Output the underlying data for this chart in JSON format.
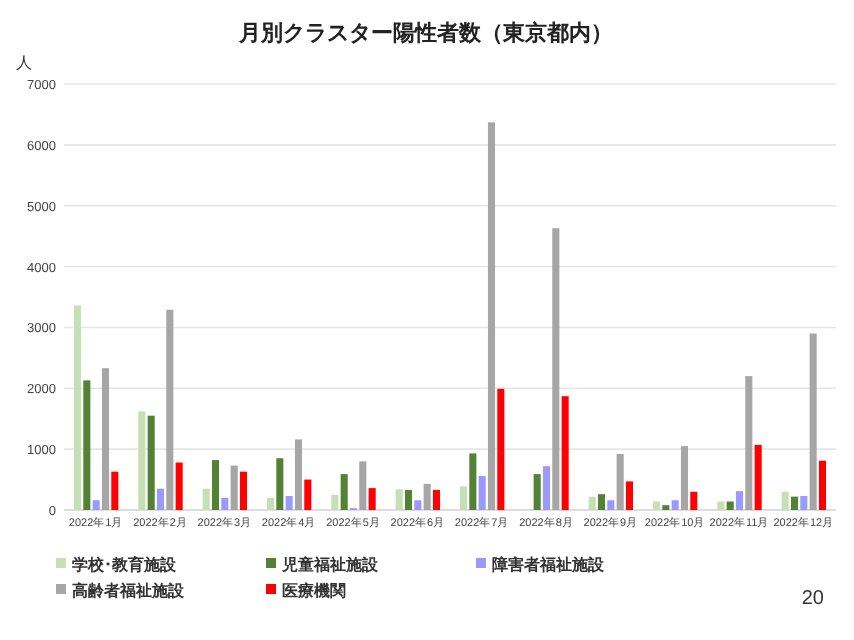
{
  "chart_data": {
    "type": "bar",
    "title": "月別クラスター陽性者数（東京都内）",
    "ylabel": "人",
    "categories": [
      "2022年1月",
      "2022年2月",
      "2022年3月",
      "2022年4月",
      "2022年5月",
      "2022年6月",
      "2022年7月",
      "2022年8月",
      "2022年9月",
      "2022年10月",
      "2022年11月",
      "2022年12月"
    ],
    "series": [
      {
        "name": "学校･教育施設",
        "color": "#c5e0b4",
        "values": [
          3360,
          1620,
          350,
          200,
          250,
          340,
          390,
          0,
          220,
          140,
          140,
          300
        ]
      },
      {
        "name": "児童福祉施設",
        "color": "#548235",
        "values": [
          2130,
          1550,
          820,
          850,
          590,
          330,
          930,
          590,
          260,
          80,
          140,
          220
        ]
      },
      {
        "name": "障害者福祉施設",
        "color": "#9999ff",
        "values": [
          160,
          350,
          200,
          230,
          30,
          160,
          560,
          720,
          160,
          160,
          310,
          230
        ]
      },
      {
        "name": "高齢者福祉施設",
        "color": "#a6a6a6",
        "values": [
          2330,
          3290,
          730,
          1160,
          800,
          430,
          6370,
          4630,
          920,
          1050,
          2200,
          2900
        ]
      },
      {
        "name": "医療機関",
        "color": "#ff0000",
        "values": [
          630,
          780,
          630,
          500,
          360,
          330,
          1990,
          1870,
          470,
          300,
          1070,
          810
        ]
      }
    ],
    "ylim": [
      0,
      7000
    ],
    "yticks": [
      0,
      1000,
      2000,
      3000,
      4000,
      5000,
      6000,
      7000
    ],
    "grid": "y",
    "legend": "bottom",
    "annotations": [
      "20"
    ]
  }
}
